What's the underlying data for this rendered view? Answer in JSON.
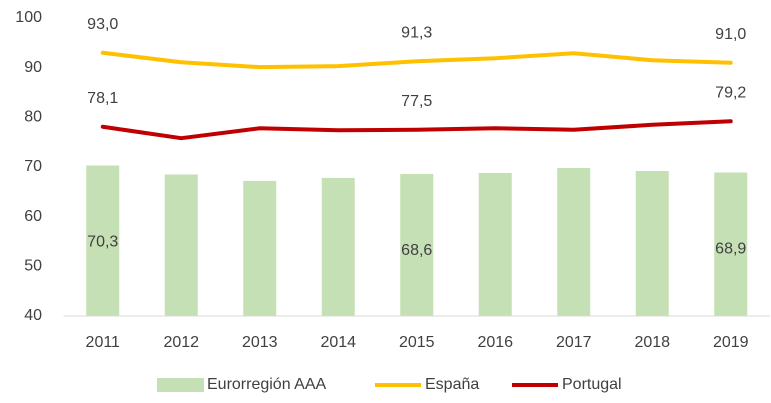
{
  "chart_data": {
    "type": "bar",
    "categories": [
      "2011",
      "2012",
      "2013",
      "2014",
      "2015",
      "2016",
      "2017",
      "2018",
      "2019"
    ],
    "series": [
      {
        "name": "Eurorregión AAA",
        "type": "bar",
        "color": "#c5e0b4",
        "values": [
          70.3,
          68.5,
          67.2,
          67.8,
          68.6,
          68.8,
          69.8,
          69.2,
          68.9
        ],
        "value_labels": [
          "70,3",
          null,
          null,
          null,
          "68,6",
          null,
          null,
          null,
          "68,9"
        ]
      },
      {
        "name": "España",
        "type": "line",
        "color": "#ffc000",
        "values": [
          93.0,
          91.1,
          90.1,
          90.3,
          91.3,
          91.9,
          92.9,
          91.5,
          91.0
        ],
        "value_labels": [
          "93,0",
          null,
          null,
          null,
          "91,3",
          null,
          null,
          null,
          "91,0"
        ]
      },
      {
        "name": "Portugal",
        "type": "line",
        "color": "#c00000",
        "values": [
          78.1,
          75.8,
          77.8,
          77.4,
          77.5,
          77.8,
          77.5,
          78.5,
          79.2
        ],
        "value_labels": [
          "78,1",
          null,
          null,
          null,
          "77,5",
          null,
          null,
          null,
          "79,2"
        ]
      }
    ],
    "ylim": [
      40,
      100
    ],
    "yticks": [
      40,
      50,
      60,
      70,
      80,
      90,
      100
    ],
    "grid": false,
    "legend": "bottom"
  }
}
